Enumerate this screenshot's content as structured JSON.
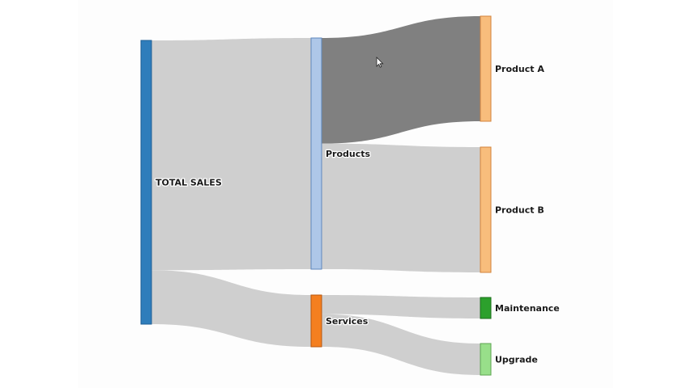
{
  "chart_data": {
    "type": "sankey",
    "nodes": [
      {
        "id": "total",
        "label": "TOTAL SALES",
        "value": 100,
        "color": "#2f7dbb",
        "stroke": "#1f5f96"
      },
      {
        "id": "products",
        "label": "Products",
        "value": 81,
        "color": "#aec7e8",
        "stroke": "#5f87bd"
      },
      {
        "id": "services",
        "label": "Services",
        "value": 19,
        "color": "#f47f20",
        "stroke": "#b9570e"
      },
      {
        "id": "productA",
        "label": "Product A",
        "value": 37,
        "color": "#f8bd7c",
        "stroke": "#d3843b"
      },
      {
        "id": "productB",
        "label": "Product B",
        "value": 44,
        "color": "#f8bd7c",
        "stroke": "#d3843b"
      },
      {
        "id": "maintenance",
        "label": "Maintenance",
        "value": 7,
        "color": "#2ca02c",
        "stroke": "#1d6e1d"
      },
      {
        "id": "upgrade",
        "label": "Upgrade",
        "value": 12,
        "color": "#98df8a",
        "stroke": "#5ea552"
      }
    ],
    "links": [
      {
        "source": "total",
        "target": "products",
        "value": 81,
        "highlight": false
      },
      {
        "source": "total",
        "target": "services",
        "value": 19,
        "highlight": false
      },
      {
        "source": "products",
        "target": "productA",
        "value": 37,
        "highlight": true
      },
      {
        "source": "products",
        "target": "productB",
        "value": 44,
        "highlight": false
      },
      {
        "source": "services",
        "target": "maintenance",
        "value": 7,
        "highlight": false
      },
      {
        "source": "services",
        "target": "upgrade",
        "value": 12,
        "highlight": false
      }
    ],
    "colors": {
      "link": "#cfcfcf",
      "link_highlight": "#808080"
    }
  }
}
